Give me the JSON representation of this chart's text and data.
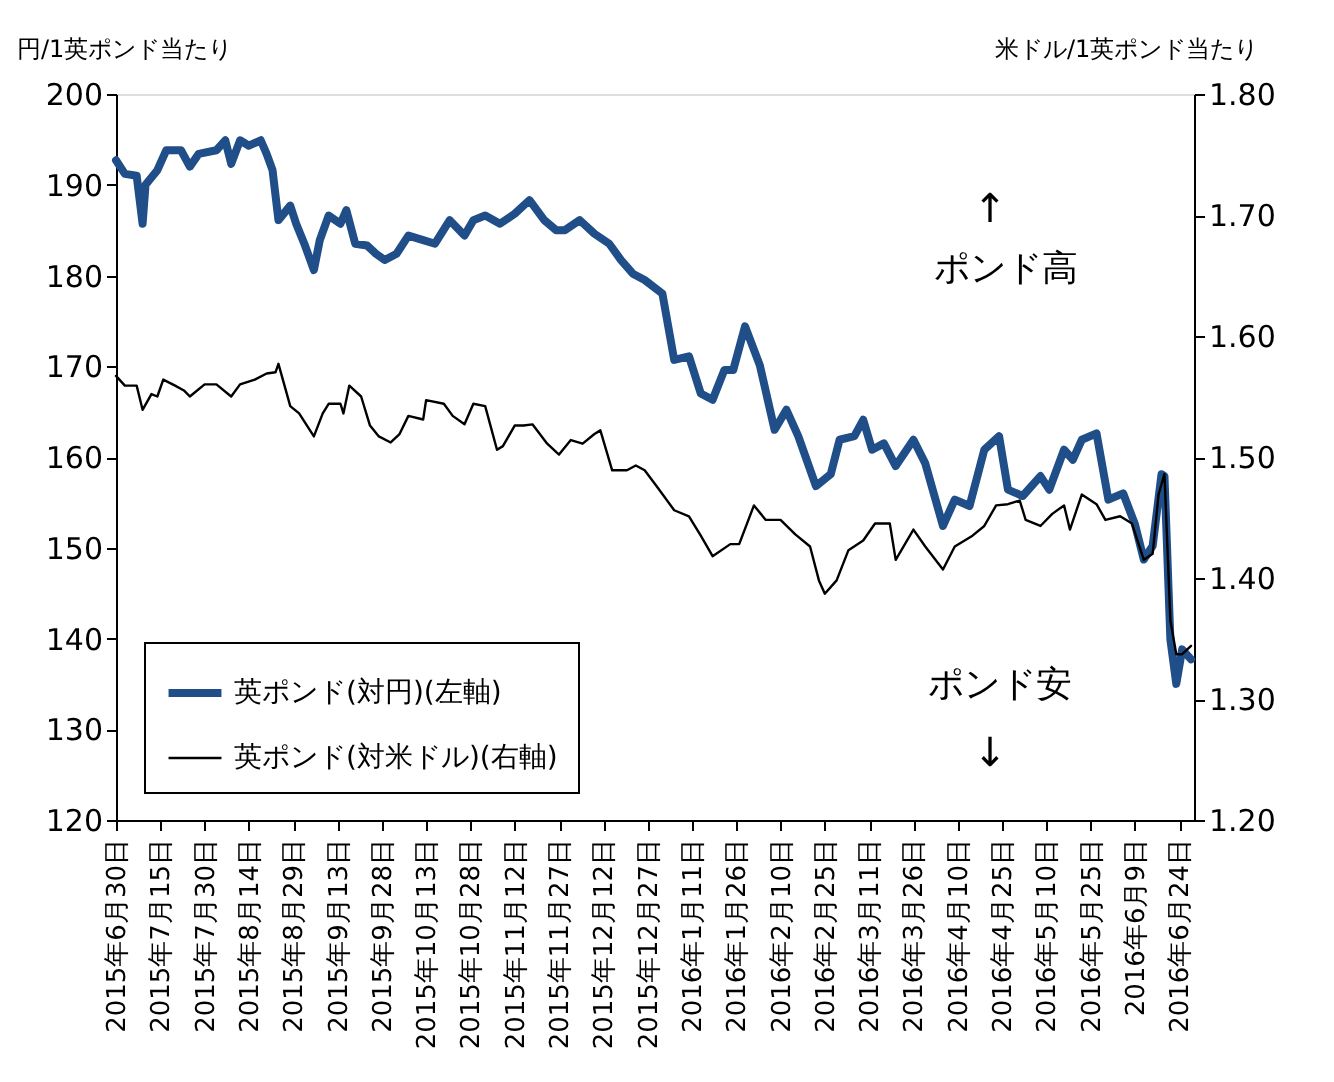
{
  "chart_data": {
    "type": "line",
    "ylabel": "円/1英ポンド当たり",
    "y2label": "米ドル/1英ポンド当たり",
    "annotations": [
      "↑",
      "ポンド高",
      "ポンド安",
      "↓"
    ],
    "legend": "bottom left",
    "xlim": [
      "2015-06-30",
      "2016-06-29"
    ],
    "xticks": [
      {
        "value": "2015-06-30",
        "label": "2015年6月30日"
      },
      {
        "value": "2015-07-15",
        "label": "2015年7月15日"
      },
      {
        "value": "2015-07-30",
        "label": "2015年7月30日"
      },
      {
        "value": "2015-08-14",
        "label": "2015年8月14日"
      },
      {
        "value": "2015-08-29",
        "label": "2015年8月29日"
      },
      {
        "value": "2015-09-13",
        "label": "2015年9月13日"
      },
      {
        "value": "2015-09-28",
        "label": "2015年9月28日"
      },
      {
        "value": "2015-10-13",
        "label": "2015年10月13日"
      },
      {
        "value": "2015-10-28",
        "label": "2015年10月28日"
      },
      {
        "value": "2015-11-12",
        "label": "2015年11月12日"
      },
      {
        "value": "2015-11-27",
        "label": "2015年11月27日"
      },
      {
        "value": "2015-12-12",
        "label": "2015年12月12日"
      },
      {
        "value": "2015-12-27",
        "label": "2015年12月27日"
      },
      {
        "value": "2016-01-11",
        "label": "2016年1月11日"
      },
      {
        "value": "2016-01-26",
        "label": "2016年1月26日"
      },
      {
        "value": "2016-02-10",
        "label": "2016年2月10日"
      },
      {
        "value": "2016-02-25",
        "label": "2016年2月25日"
      },
      {
        "value": "2016-03-11",
        "label": "2016年3月11日"
      },
      {
        "value": "2016-03-26",
        "label": "2016年3月26日"
      },
      {
        "value": "2016-04-10",
        "label": "2016年4月10日"
      },
      {
        "value": "2016-04-25",
        "label": "2016年4月25日"
      },
      {
        "value": "2016-05-10",
        "label": "2016年5月10日"
      },
      {
        "value": "2016-05-25",
        "label": "2016年5月25日"
      },
      {
        "value": "2016-06-09",
        "label": "2016年6月9日"
      },
      {
        "value": "2016-06-24",
        "label": "2016年6月24日"
      }
    ],
    "ylim": [
      120,
      200
    ],
    "yticks": [
      120,
      130,
      140,
      150,
      160,
      170,
      180,
      190,
      200
    ],
    "y2lim": [
      1.2,
      1.8
    ],
    "y2ticks": [
      {
        "value": 1.2,
        "label": "1.20"
      },
      {
        "value": 1.3,
        "label": "1.30"
      },
      {
        "value": 1.4,
        "label": "1.40"
      },
      {
        "value": 1.5,
        "label": "1.50"
      },
      {
        "value": 1.6,
        "label": "1.60"
      },
      {
        "value": 1.7,
        "label": "1.70"
      },
      {
        "value": 1.8,
        "label": "1.80"
      }
    ],
    "series": [
      {
        "name": "英ポンド(対円)(左軸)",
        "color": "#1f4e89",
        "axis": "y",
        "x": [
          "2015-06-30",
          "2015-07-03",
          "2015-07-07",
          "2015-07-09",
          "2015-07-10",
          "2015-07-14",
          "2015-07-17",
          "2015-07-22",
          "2015-07-25",
          "2015-07-28",
          "2015-08-03",
          "2015-08-06",
          "2015-08-08",
          "2015-08-11",
          "2015-08-14",
          "2015-08-18",
          "2015-08-20",
          "2015-08-22",
          "2015-08-24",
          "2015-08-28",
          "2015-08-30",
          "2015-09-02",
          "2015-09-05",
          "2015-09-07",
          "2015-09-10",
          "2015-09-14",
          "2015-09-16",
          "2015-09-19",
          "2015-09-23",
          "2015-09-26",
          "2015-09-29",
          "2015-10-03",
          "2015-10-07",
          "2015-10-12",
          "2015-10-16",
          "2015-10-21",
          "2015-10-26",
          "2015-10-29",
          "2015-11-02",
          "2015-11-07",
          "2015-11-12",
          "2015-11-17",
          "2015-11-22",
          "2015-11-26",
          "2015-11-29",
          "2015-12-04",
          "2015-12-09",
          "2015-12-14",
          "2015-12-18",
          "2015-12-22",
          "2015-12-26",
          "2016-01-01",
          "2016-01-05",
          "2016-01-10",
          "2016-01-14",
          "2016-01-18",
          "2016-01-22",
          "2016-01-25",
          "2016-01-29",
          "2016-02-03",
          "2016-02-08",
          "2016-02-12",
          "2016-02-16",
          "2016-02-22",
          "2016-02-27",
          "2016-03-01",
          "2016-03-06",
          "2016-03-09",
          "2016-03-12",
          "2016-03-16",
          "2016-03-20",
          "2016-03-26",
          "2016-03-30",
          "2016-04-05",
          "2016-04-09",
          "2016-04-14",
          "2016-04-19",
          "2016-04-24",
          "2016-04-27",
          "2016-05-02",
          "2016-05-08",
          "2016-05-11",
          "2016-05-16",
          "2016-05-19",
          "2016-05-22",
          "2016-05-27",
          "2016-05-31",
          "2016-06-05",
          "2016-06-09",
          "2016-06-12",
          "2016-06-15",
          "2016-06-18",
          "2016-06-19",
          "2016-06-21",
          "2016-06-23",
          "2016-06-25",
          "2016-06-28"
        ],
        "values": [
          192.7,
          191.2,
          191,
          185.7,
          190,
          191.6,
          193.8,
          193.8,
          192,
          193.4,
          193.8,
          194.9,
          192.3,
          194.9,
          194.3,
          194.9,
          193.4,
          191.6,
          186.1,
          187.7,
          185.7,
          183.3,
          180.6,
          183.9,
          186.6,
          185.7,
          187.2,
          183.5,
          183.3,
          182.4,
          181.7,
          182.4,
          184.4,
          183.9,
          183.5,
          186.1,
          184.4,
          186.1,
          186.6,
          185.7,
          186.8,
          188.3,
          186.1,
          185,
          185,
          186.1,
          184.6,
          183.5,
          181.7,
          180.2,
          179.5,
          178,
          170.7,
          171.1,
          167,
          166.3,
          169.6,
          169.6,
          174.4,
          170.1,
          163,
          165.2,
          162.3,
          156.8,
          158.1,
          161.9,
          162.3,
          164.1,
          160.8,
          161.5,
          159,
          161.9,
          159.3,
          152.4,
          155.3,
          154.6,
          160.8,
          162.3,
          156.4,
          155.7,
          157.9,
          156.4,
          160.8,
          159.7,
          161.9,
          162.6,
          155.3,
          156,
          152.6,
          148.7,
          150.2,
          158.1,
          157.9,
          139.9,
          135,
          138.8,
          137.7
        ]
      },
      {
        "name": "英ポンド(対米ドル)(右軸)",
        "color": "#000000",
        "axis": "y2",
        "x": [
          "2015-06-30",
          "2015-07-03",
          "2015-07-07",
          "2015-07-09",
          "2015-07-12",
          "2015-07-14",
          "2015-07-16",
          "2015-07-20",
          "2015-07-23",
          "2015-07-25",
          "2015-07-30",
          "2015-08-03",
          "2015-08-08",
          "2015-08-11",
          "2015-08-16",
          "2015-08-20",
          "2015-08-23",
          "2015-08-24",
          "2015-08-28",
          "2015-08-31",
          "2015-09-05",
          "2015-09-08",
          "2015-09-10",
          "2015-09-14",
          "2015-09-15",
          "2015-09-17",
          "2015-09-21",
          "2015-09-24",
          "2015-09-27",
          "2015-10-01",
          "2015-10-04",
          "2015-10-07",
          "2015-10-12",
          "2015-10-13",
          "2015-10-19",
          "2015-10-22",
          "2015-10-26",
          "2015-10-29",
          "2015-11-02",
          "2015-11-06",
          "2015-11-08",
          "2015-11-12",
          "2015-11-15",
          "2015-11-18",
          "2015-11-23",
          "2015-11-27",
          "2015-12-01",
          "2015-12-05",
          "2015-12-09",
          "2015-12-11",
          "2015-12-15",
          "2015-12-20",
          "2015-12-23",
          "2015-12-26",
          "2015-12-30",
          "2016-01-05",
          "2016-01-10",
          "2016-01-14",
          "2016-01-18",
          "2016-01-24",
          "2016-01-27",
          "2016-02-01",
          "2016-02-05",
          "2016-02-10",
          "2016-02-15",
          "2016-02-20",
          "2016-02-23",
          "2016-02-25",
          "2016-02-29",
          "2016-03-04",
          "2016-03-09",
          "2016-03-13",
          "2016-03-18",
          "2016-03-20",
          "2016-03-26",
          "2016-03-30",
          "2016-04-05",
          "2016-04-09",
          "2016-04-15",
          "2016-04-19",
          "2016-04-23",
          "2016-04-27",
          "2016-05-01",
          "2016-05-03",
          "2016-05-08",
          "2016-05-12",
          "2016-05-16",
          "2016-05-18",
          "2016-05-22",
          "2016-05-27",
          "2016-05-30",
          "2016-06-04",
          "2016-06-08",
          "2016-06-12",
          "2016-06-15",
          "2016-06-17",
          "2016-06-19",
          "2016-06-21",
          "2016-06-23",
          "2016-06-25",
          "2016-06-28"
        ],
        "values": [
          1.567,
          1.559,
          1.559,
          1.539,
          1.552,
          1.55,
          1.564,
          1.559,
          1.555,
          1.55,
          1.56,
          1.56,
          1.55,
          1.56,
          1.564,
          1.569,
          1.57,
          1.577,
          1.542,
          1.536,
          1.517,
          1.536,
          1.544,
          1.544,
          1.536,
          1.559,
          1.55,
          1.526,
          1.517,
          1.512,
          1.519,
          1.534,
          1.531,
          1.547,
          1.544,
          1.534,
          1.527,
          1.544,
          1.542,
          1.506,
          1.509,
          1.526,
          1.526,
          1.527,
          1.511,
          1.502,
          1.514,
          1.511,
          1.519,
          1.522,
          1.489,
          1.489,
          1.493,
          1.489,
          1.476,
          1.456,
          1.451,
          1.435,
          1.418,
          1.428,
          1.428,
          1.46,
          1.448,
          1.448,
          1.436,
          1.426,
          1.398,
          1.387,
          1.398,
          1.423,
          1.431,
          1.445,
          1.445,
          1.415,
          1.44,
          1.426,
          1.407,
          1.426,
          1.435,
          1.443,
          1.46,
          1.461,
          1.464,
          1.448,
          1.443,
          1.453,
          1.46,
          1.44,
          1.469,
          1.461,
          1.448,
          1.451,
          1.445,
          1.415,
          1.42,
          1.469,
          1.486,
          1.365,
          1.337,
          1.337,
          1.344
        ]
      }
    ]
  }
}
